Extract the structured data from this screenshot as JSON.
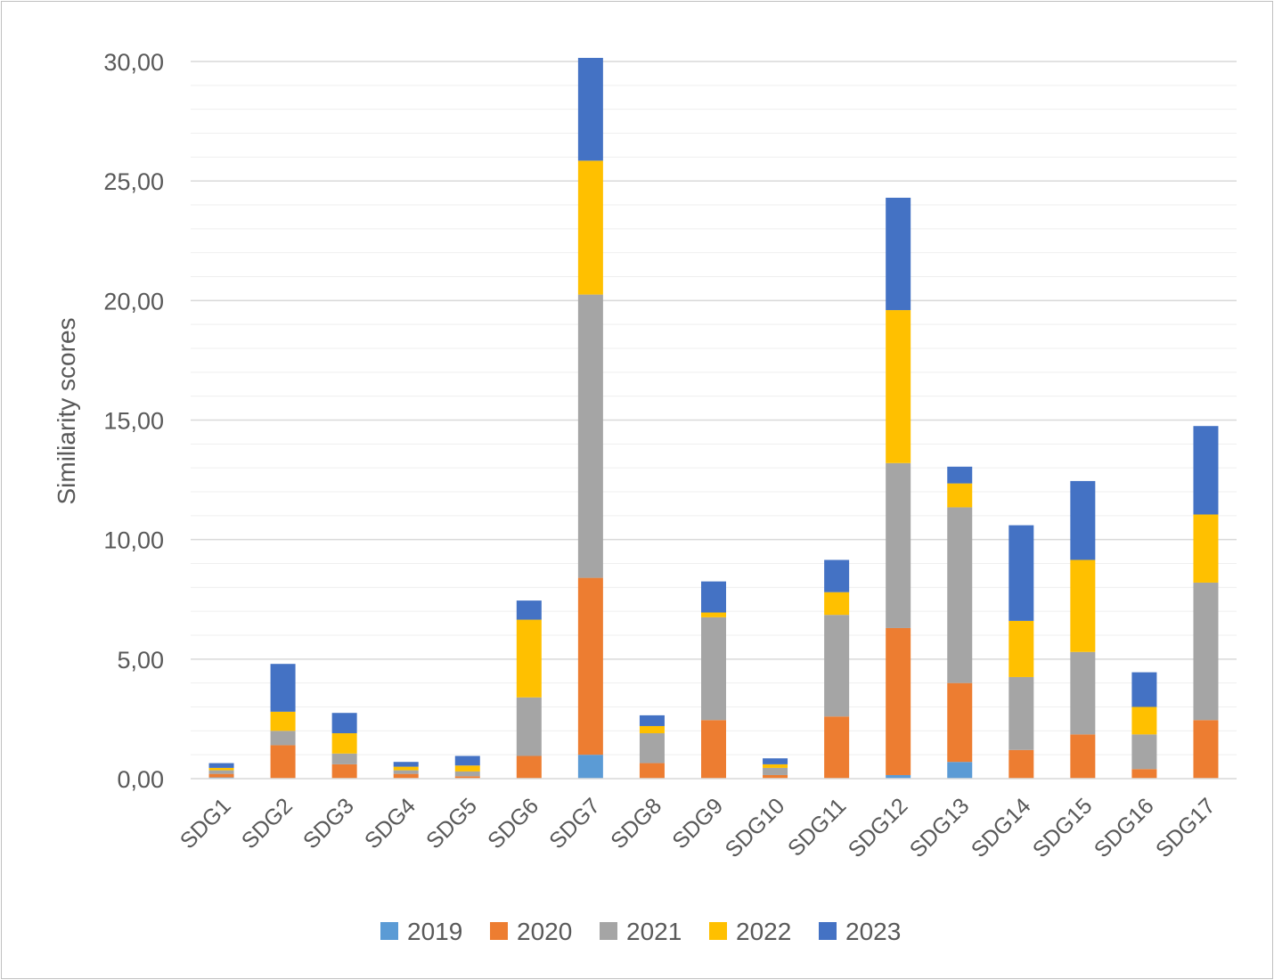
{
  "chart_data": {
    "type": "bar",
    "stacked": true,
    "title": "",
    "xlabel": "",
    "ylabel": "Similiarity scores",
    "ylim": [
      0,
      30
    ],
    "yticks": [
      "0,00",
      "5,00",
      "10,00",
      "15,00",
      "20,00",
      "25,00",
      "30,00"
    ],
    "grid": true,
    "legend_position": "bottom",
    "categories": [
      "SDG1",
      "SDG2",
      "SDG3",
      "SDG4",
      "SDG5",
      "SDG6",
      "SDG7",
      "SDG8",
      "SDG9",
      "SDG10",
      "SDG11",
      "SDG12",
      "SDG13",
      "SDG14",
      "SDG15",
      "SDG16",
      "SDG17"
    ],
    "series": [
      {
        "name": "2019",
        "color": "#5b9bd5",
        "values": [
          0.05,
          0.0,
          0.0,
          0.0,
          0.0,
          0.0,
          1.0,
          0.0,
          0.0,
          0.0,
          0.0,
          0.15,
          0.7,
          0.0,
          0.0,
          0.0,
          0.0
        ]
      },
      {
        "name": "2020",
        "color": "#ed7d31",
        "values": [
          0.15,
          1.4,
          0.6,
          0.2,
          0.1,
          0.95,
          7.4,
          0.65,
          2.45,
          0.15,
          2.6,
          6.15,
          3.3,
          1.2,
          1.85,
          0.4,
          2.45
        ]
      },
      {
        "name": "2021",
        "color": "#a5a5a5",
        "values": [
          0.15,
          0.6,
          0.45,
          0.15,
          0.2,
          2.45,
          11.85,
          1.25,
          4.3,
          0.3,
          4.25,
          6.9,
          7.35,
          3.05,
          3.45,
          1.45,
          5.75
        ]
      },
      {
        "name": "2022",
        "color": "#ffc000",
        "values": [
          0.1,
          0.8,
          0.85,
          0.15,
          0.25,
          3.25,
          5.6,
          0.3,
          0.2,
          0.15,
          0.95,
          6.4,
          1.0,
          2.35,
          3.85,
          1.15,
          2.85
        ]
      },
      {
        "name": "2023",
        "color": "#4472c4",
        "values": [
          0.2,
          2.0,
          0.85,
          0.2,
          0.4,
          0.8,
          4.3,
          0.45,
          1.3,
          0.25,
          1.35,
          4.7,
          0.7,
          4.0,
          3.3,
          1.45,
          3.7
        ]
      }
    ]
  }
}
